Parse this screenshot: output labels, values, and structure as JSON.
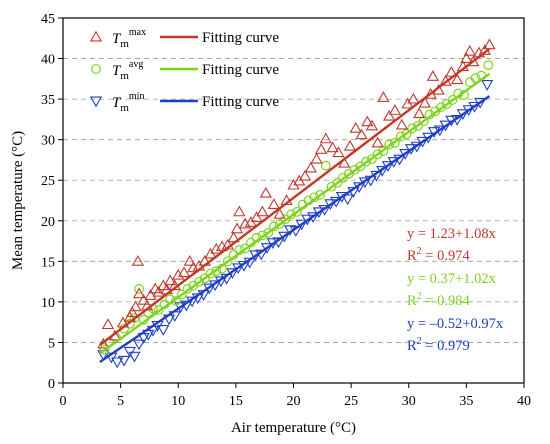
{
  "chart_data": {
    "type": "scatter",
    "title": "",
    "xlabel": "Air temperature (°C)",
    "ylabel": "Mean temperature (°C)",
    "xlim": [
      0,
      40
    ],
    "ylim": [
      0,
      45
    ],
    "xticks": [
      "0",
      "5",
      "10",
      "15",
      "20",
      "25",
      "30",
      "35",
      "40"
    ],
    "yticks": [
      "0",
      "5",
      "10",
      "15",
      "20",
      "25",
      "30",
      "35",
      "40",
      "45"
    ],
    "grid": "horizontal dashed",
    "legend": {
      "placement": "top-left",
      "entries": [
        {
          "symbol": "T",
          "sub": "m",
          "sup": "max",
          "marker": "triangle-up",
          "line_label": "Fitting curve"
        },
        {
          "symbol": "T",
          "sub": "m",
          "sup": "avg",
          "marker": "circle",
          "line_label": "Fitting curve"
        },
        {
          "symbol": "T",
          "sub": "m",
          "sup": "min",
          "marker": "triangle-down",
          "line_label": "Fitting curve"
        }
      ]
    },
    "annotations": [
      {
        "series": "max",
        "equation": "y = 1.23+1.08x",
        "r2": "R2 = 0.974"
      },
      {
        "series": "avg",
        "equation": "y = 0.37+1.02x",
        "r2": "R2 = 0.984"
      },
      {
        "series": "min",
        "equation": "y = –0.52+0.97x",
        "r2": "R2 = 0.979"
      }
    ],
    "series": [
      {
        "key": "max",
        "marker": "triangle-up",
        "color": "#c0392b",
        "fit": {
          "intercept": 1.23,
          "slope": 1.08,
          "x_range": [
            3.2,
            37
          ]
        },
        "points": [
          [
            3.5,
            4.8
          ],
          [
            3.9,
            7.2
          ],
          [
            4.5,
            5.8
          ],
          [
            5.2,
            7.4
          ],
          [
            5.8,
            8.1
          ],
          [
            6.0,
            8.7
          ],
          [
            6.3,
            9.4
          ],
          [
            6.5,
            15.0
          ],
          [
            6.6,
            11.0
          ],
          [
            7.0,
            10.2
          ],
          [
            7.3,
            9.5
          ],
          [
            7.6,
            10.8
          ],
          [
            8.0,
            11.6
          ],
          [
            8.3,
            11.2
          ],
          [
            8.7,
            12.0
          ],
          [
            9.0,
            11.5
          ],
          [
            9.3,
            12.6
          ],
          [
            9.7,
            12.0
          ],
          [
            10.0,
            13.3
          ],
          [
            10.5,
            13.6
          ],
          [
            11.0,
            15.0
          ],
          [
            11.3,
            14.2
          ],
          [
            11.8,
            14.4
          ],
          [
            12.3,
            15.0
          ],
          [
            12.8,
            15.9
          ],
          [
            13.3,
            16.5
          ],
          [
            13.8,
            16.8
          ],
          [
            14.3,
            17.0
          ],
          [
            14.8,
            17.9
          ],
          [
            15.1,
            19.0
          ],
          [
            15.3,
            21.1
          ],
          [
            15.8,
            19.6
          ],
          [
            16.3,
            19.8
          ],
          [
            16.8,
            20.4
          ],
          [
            17.3,
            21.1
          ],
          [
            17.6,
            23.4
          ],
          [
            18.3,
            22.0
          ],
          [
            18.8,
            20.8
          ],
          [
            19.4,
            22.5
          ],
          [
            20.0,
            24.4
          ],
          [
            20.5,
            24.9
          ],
          [
            21.0,
            25.5
          ],
          [
            21.5,
            26.5
          ],
          [
            22.0,
            27.6
          ],
          [
            22.4,
            28.8
          ],
          [
            22.8,
            30.1
          ],
          [
            23.4,
            29.0
          ],
          [
            23.9,
            28.4
          ],
          [
            24.4,
            27.1
          ],
          [
            24.9,
            29.2
          ],
          [
            25.4,
            31.4
          ],
          [
            25.9,
            30.6
          ],
          [
            26.4,
            32.2
          ],
          [
            26.8,
            31.7
          ],
          [
            27.3,
            29.6
          ],
          [
            27.8,
            35.2
          ],
          [
            28.3,
            32.9
          ],
          [
            28.8,
            33.6
          ],
          [
            29.4,
            31.8
          ],
          [
            29.9,
            34.4
          ],
          [
            30.4,
            35.0
          ],
          [
            30.9,
            33.2
          ],
          [
            31.4,
            34.5
          ],
          [
            31.9,
            35.6
          ],
          [
            32.1,
            37.8
          ],
          [
            32.6,
            36.1
          ],
          [
            33.2,
            37.2
          ],
          [
            33.7,
            38.3
          ],
          [
            34.2,
            37.4
          ],
          [
            34.7,
            39.0
          ],
          [
            35.0,
            40.0
          ],
          [
            35.3,
            40.9
          ],
          [
            35.6,
            39.6
          ],
          [
            36.1,
            40.7
          ],
          [
            36.6,
            41.0
          ],
          [
            37.0,
            41.7
          ]
        ]
      },
      {
        "key": "avg",
        "marker": "circle",
        "color": "#7ed321",
        "fit": {
          "intercept": 0.37,
          "slope": 1.02,
          "x_range": [
            3.2,
            37
          ]
        },
        "points": [
          [
            3.6,
            4.1
          ],
          [
            4.0,
            5.0
          ],
          [
            4.6,
            5.6
          ],
          [
            5.3,
            6.7
          ],
          [
            5.8,
            7.3
          ],
          [
            6.2,
            8.0
          ],
          [
            6.6,
            11.6
          ],
          [
            7.0,
            7.8
          ],
          [
            7.4,
            8.7
          ],
          [
            7.8,
            9.2
          ],
          [
            8.3,
            9.0
          ],
          [
            8.8,
            9.7
          ],
          [
            9.3,
            10.3
          ],
          [
            9.8,
            10.1
          ],
          [
            10.3,
            10.9
          ],
          [
            10.8,
            11.6
          ],
          [
            11.3,
            12.0
          ],
          [
            11.8,
            12.5
          ],
          [
            12.3,
            12.9
          ],
          [
            12.8,
            13.5
          ],
          [
            13.3,
            13.8
          ],
          [
            13.8,
            14.1
          ],
          [
            14.3,
            15.0
          ],
          [
            14.8,
            15.8
          ],
          [
            15.3,
            16.4
          ],
          [
            15.8,
            16.6
          ],
          [
            16.3,
            17.3
          ],
          [
            16.8,
            17.9
          ],
          [
            17.3,
            18.2
          ],
          [
            17.8,
            18.5
          ],
          [
            18.3,
            19.3
          ],
          [
            18.8,
            19.6
          ],
          [
            19.3,
            20.2
          ],
          [
            19.8,
            20.8
          ],
          [
            20.3,
            21.1
          ],
          [
            20.8,
            22.0
          ],
          [
            21.3,
            22.5
          ],
          [
            21.8,
            22.9
          ],
          [
            22.3,
            23.2
          ],
          [
            22.8,
            26.8
          ],
          [
            23.3,
            24.2
          ],
          [
            23.8,
            24.7
          ],
          [
            24.3,
            25.3
          ],
          [
            24.8,
            25.8
          ],
          [
            25.3,
            26.3
          ],
          [
            25.8,
            26.7
          ],
          [
            26.3,
            27.3
          ],
          [
            26.8,
            27.6
          ],
          [
            27.3,
            28.2
          ],
          [
            27.8,
            28.6
          ],
          [
            28.3,
            29.4
          ],
          [
            28.8,
            29.6
          ],
          [
            29.3,
            30.4
          ],
          [
            29.8,
            30.7
          ],
          [
            30.3,
            31.4
          ],
          [
            30.8,
            31.7
          ],
          [
            31.3,
            32.3
          ],
          [
            31.8,
            33.1
          ],
          [
            32.3,
            33.5
          ],
          [
            32.8,
            34.0
          ],
          [
            33.3,
            34.4
          ],
          [
            33.8,
            34.9
          ],
          [
            34.3,
            35.7
          ],
          [
            34.8,
            35.5
          ],
          [
            35.3,
            37.1
          ],
          [
            35.8,
            37.6
          ],
          [
            36.3,
            37.9
          ],
          [
            36.9,
            39.2
          ]
        ]
      },
      {
        "key": "min",
        "marker": "triangle-down",
        "color": "#1f3fc4",
        "fit": {
          "intercept": -0.52,
          "slope": 0.97,
          "x_range": [
            3.2,
            37
          ]
        },
        "points": [
          [
            3.5,
            3.5
          ],
          [
            4.2,
            3.2
          ],
          [
            4.7,
            2.6
          ],
          [
            5.3,
            2.8
          ],
          [
            5.8,
            3.9
          ],
          [
            6.2,
            3.3
          ],
          [
            6.6,
            4.8
          ],
          [
            7.0,
            5.6
          ],
          [
            7.4,
            6.0
          ],
          [
            7.8,
            6.5
          ],
          [
            8.2,
            7.1
          ],
          [
            8.7,
            6.6
          ],
          [
            9.2,
            7.9
          ],
          [
            9.7,
            8.3
          ],
          [
            10.2,
            9.4
          ],
          [
            10.7,
            9.6
          ],
          [
            11.2,
            10.1
          ],
          [
            11.7,
            10.5
          ],
          [
            12.2,
            10.9
          ],
          [
            12.7,
            11.7
          ],
          [
            13.2,
            12.1
          ],
          [
            13.7,
            12.6
          ],
          [
            14.2,
            12.9
          ],
          [
            14.7,
            13.6
          ],
          [
            15.2,
            14.2
          ],
          [
            15.7,
            14.5
          ],
          [
            16.2,
            14.9
          ],
          [
            16.7,
            15.8
          ],
          [
            17.2,
            15.9
          ],
          [
            17.7,
            16.7
          ],
          [
            18.2,
            17.3
          ],
          [
            18.7,
            17.4
          ],
          [
            19.2,
            18.1
          ],
          [
            19.7,
            18.9
          ],
          [
            20.2,
            18.8
          ],
          [
            20.7,
            19.6
          ],
          [
            21.2,
            20.2
          ],
          [
            21.7,
            20.5
          ],
          [
            22.2,
            21.1
          ],
          [
            22.7,
            21.4
          ],
          [
            23.2,
            22.1
          ],
          [
            23.7,
            22.4
          ],
          [
            24.2,
            23.0
          ],
          [
            24.7,
            22.7
          ],
          [
            25.2,
            23.6
          ],
          [
            25.7,
            24.2
          ],
          [
            26.2,
            24.8
          ],
          [
            26.7,
            25.0
          ],
          [
            27.2,
            25.6
          ],
          [
            27.7,
            26.2
          ],
          [
            28.2,
            26.8
          ],
          [
            28.7,
            27.3
          ],
          [
            29.2,
            27.6
          ],
          [
            29.7,
            28.3
          ],
          [
            30.2,
            28.9
          ],
          [
            30.7,
            29.2
          ],
          [
            31.2,
            29.8
          ],
          [
            31.7,
            30.3
          ],
          [
            32.2,
            31.0
          ],
          [
            32.7,
            31.2
          ],
          [
            33.2,
            31.8
          ],
          [
            33.7,
            32.4
          ],
          [
            34.2,
            32.5
          ],
          [
            34.7,
            33.2
          ],
          [
            35.2,
            33.7
          ],
          [
            35.7,
            34.1
          ],
          [
            36.2,
            34.6
          ],
          [
            36.8,
            36.8
          ]
        ]
      }
    ]
  }
}
